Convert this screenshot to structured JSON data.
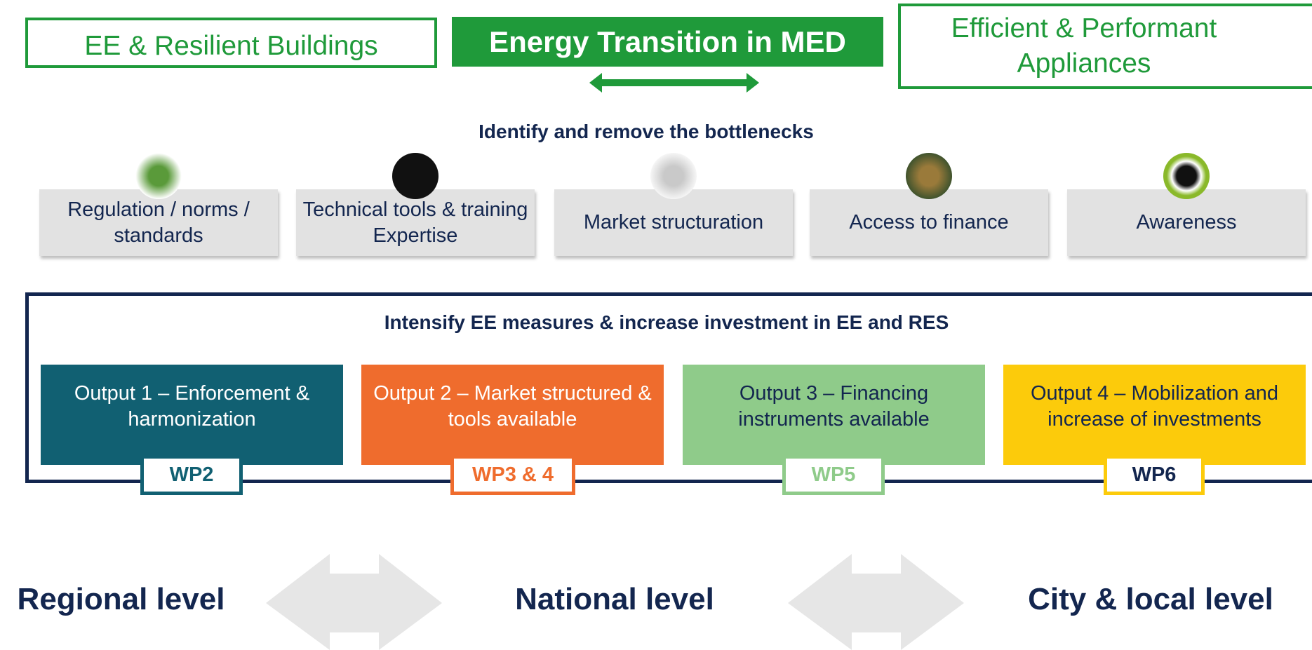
{
  "header": {
    "left": "EE & Resilient Buildings",
    "center": "Energy Transition in MED",
    "right": "Efficient & Performant Appliances"
  },
  "bottlenecks": {
    "title": "Identify and remove the bottlenecks",
    "items": [
      "Regulation / norms / standards",
      "Technical tools & training Expertise",
      "Market structuration",
      "Access to finance",
      "Awareness"
    ]
  },
  "outputs": {
    "title": "Intensify EE measures & increase investment in EE and RES",
    "items": [
      {
        "label": "Output 1 – Enforcement & harmonization",
        "wp": "WP2"
      },
      {
        "label": "Output 2 – Market structured & tools available",
        "wp": "WP3 & 4"
      },
      {
        "label": "Output 3 – Financing instruments available",
        "wp": "WP5"
      },
      {
        "label": "Output 4 – Mobilization and increase of investments",
        "wp": "WP6"
      }
    ]
  },
  "levels": [
    "Regional level",
    "National level",
    "City & local level"
  ]
}
